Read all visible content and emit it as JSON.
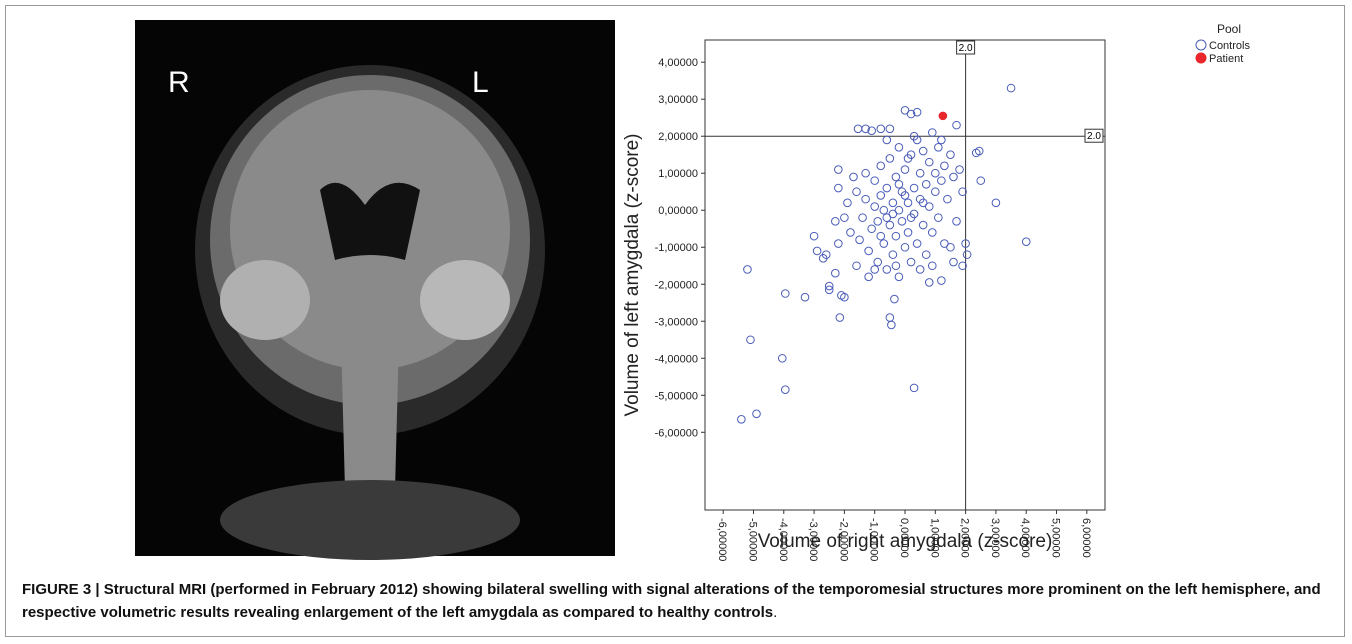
{
  "image": {
    "left_label": "R",
    "right_label": "L"
  },
  "chart_data": {
    "type": "scatter",
    "xlabel": "Volume of right amygdala (z-score)",
    "ylabel": "Volume of left amygdala (z-score)",
    "legend_title": "Pool",
    "legend": "top-right-outside",
    "xlim": [
      -6.6,
      6.6
    ],
    "ylim": [
      -8.1,
      4.6
    ],
    "xticks": [
      {
        "value": -6,
        "label": "-6,00000"
      },
      {
        "value": -5,
        "label": "-5,00000"
      },
      {
        "value": -4,
        "label": "-4,00000"
      },
      {
        "value": -3,
        "label": "-3,00000"
      },
      {
        "value": -2,
        "label": "-2,00000"
      },
      {
        "value": -1,
        "label": "-1,00000"
      },
      {
        "value": 0,
        "label": "0,00000"
      },
      {
        "value": 1,
        "label": "1,00000"
      },
      {
        "value": 2,
        "label": "2,00000"
      },
      {
        "value": 3,
        "label": "3,00000"
      },
      {
        "value": 4,
        "label": "4,00000"
      },
      {
        "value": 5,
        "label": "5,00000"
      },
      {
        "value": 6,
        "label": "6,00000"
      }
    ],
    "yticks": [
      {
        "value": 4,
        "label": "4,00000"
      },
      {
        "value": 3,
        "label": "3,00000"
      },
      {
        "value": 2,
        "label": "2,00000"
      },
      {
        "value": 1,
        "label": "1,00000"
      },
      {
        "value": 0,
        "label": "0,00000"
      },
      {
        "value": -1,
        "label": "-1,00000"
      },
      {
        "value": -2,
        "label": "-2,00000"
      },
      {
        "value": -3,
        "label": "-3,00000"
      },
      {
        "value": -4,
        "label": "-4,00000"
      },
      {
        "value": -5,
        "label": "-5,00000"
      },
      {
        "value": -6,
        "label": "-6,00000"
      }
    ],
    "ref_lines": [
      {
        "axis": "x",
        "value": 2,
        "label": "2.0"
      },
      {
        "axis": "y",
        "value": 2,
        "label": "2.0"
      }
    ],
    "series": [
      {
        "name": "Controls",
        "color": "#4a5cb8",
        "marker": "hollow",
        "x": [
          -5.4,
          -4.9,
          -5.1,
          -5.2,
          -4.05,
          -3.95,
          -3.95,
          -3.3,
          -2.9,
          -3.0,
          -2.7,
          -2.6,
          -2.5,
          -2.5,
          -2.3,
          -2.15,
          -2.0,
          -2.1,
          -0.5,
          -0.45,
          -0.35,
          0.3,
          3.0,
          4.0,
          3.5,
          2.0,
          2.05,
          1.9,
          2.35,
          2.45,
          1.7,
          0.0,
          0.2,
          0.4,
          -0.5,
          -1.3,
          -0.8,
          -1.1,
          -1.55,
          -2.2,
          -2.2,
          -1.7,
          -2.3,
          -2.2,
          -1.6,
          -1.2,
          0.8,
          1.2,
          1.6,
          2.5,
          -1.5,
          -1.4,
          -1.3,
          -1.2,
          -1.1,
          -1.0,
          -1.0,
          -0.9,
          -0.9,
          -0.8,
          -0.8,
          -0.7,
          -0.7,
          -0.6,
          -0.6,
          -0.5,
          -0.5,
          -0.4,
          -0.4,
          -0.3,
          -0.3,
          -0.2,
          -0.2,
          -0.2,
          -0.1,
          -0.1,
          0.0,
          0.0,
          0.1,
          0.1,
          0.2,
          0.2,
          0.3,
          0.3,
          0.4,
          0.4,
          0.5,
          0.5,
          0.6,
          0.6,
          0.7,
          0.7,
          0.8,
          0.8,
          0.9,
          0.9,
          1.0,
          1.0,
          1.1,
          1.1,
          1.2,
          1.3,
          1.3,
          1.4,
          1.5,
          1.6,
          1.7,
          1.8,
          -1.6,
          -1.8,
          -1.9,
          -1.3,
          -0.6,
          0.0,
          0.2,
          -0.4,
          0.6,
          -0.2,
          1.2,
          0.3,
          -0.6,
          1.5,
          -1.0,
          0.9,
          -0.3,
          1.9,
          -2.0,
          0.1,
          -0.8,
          0.5
        ],
        "values": [
          -5.65,
          -5.5,
          -3.5,
          -1.6,
          -4.0,
          -4.85,
          -2.25,
          -2.35,
          -1.1,
          -0.7,
          -1.3,
          -1.2,
          -2.15,
          -2.05,
          -1.7,
          -2.9,
          -2.35,
          -2.3,
          -2.9,
          -3.1,
          -2.4,
          -4.8,
          0.2,
          -0.85,
          3.3,
          -0.9,
          -1.2,
          -1.5,
          1.55,
          1.6,
          2.3,
          2.7,
          2.6,
          2.65,
          2.2,
          2.2,
          2.2,
          2.15,
          2.2,
          1.1,
          0.6,
          0.9,
          -0.3,
          -0.9,
          -1.5,
          -1.8,
          -1.95,
          -1.9,
          -1.4,
          0.8,
          -0.8,
          -0.2,
          0.3,
          -1.1,
          -0.5,
          0.1,
          0.8,
          -1.4,
          -0.3,
          0.4,
          1.2,
          -0.9,
          0.0,
          -1.6,
          0.6,
          -0.4,
          1.4,
          -1.2,
          0.2,
          0.9,
          -0.7,
          -1.8,
          0.0,
          1.7,
          -0.3,
          0.5,
          -1.0,
          1.1,
          0.2,
          -0.6,
          1.5,
          -1.4,
          0.6,
          -0.1,
          1.9,
          -0.9,
          0.3,
          1.0,
          -0.4,
          1.6,
          0.7,
          -1.2,
          0.1,
          1.3,
          -0.6,
          2.1,
          0.5,
          1.0,
          -0.2,
          1.7,
          0.8,
          -0.9,
          1.2,
          0.3,
          1.5,
          0.9,
          -0.3,
          1.1,
          0.5,
          -0.6,
          0.2,
          1.0,
          -0.2,
          0.4,
          -0.2,
          -0.1,
          0.2,
          0.7,
          1.9,
          2.0,
          1.9,
          -1.0,
          -1.6,
          -1.5,
          -1.5,
          0.5,
          -0.2,
          1.4,
          -0.7,
          -1.6
        ]
      },
      {
        "name": "Patient",
        "color": "#e8262c",
        "marker": "filled",
        "x": [
          1.25
        ],
        "values": [
          2.55
        ]
      }
    ]
  },
  "caption": {
    "bold": "FIGURE 3 | Structural MRI (performed in February 2012) showing bilateral swelling with signal alterations of the temporomesial structures more prominent on the left hemisphere, and respective volumetric results revealing enlargement of the left amygdala as compared to healthy controls",
    "end": "."
  }
}
